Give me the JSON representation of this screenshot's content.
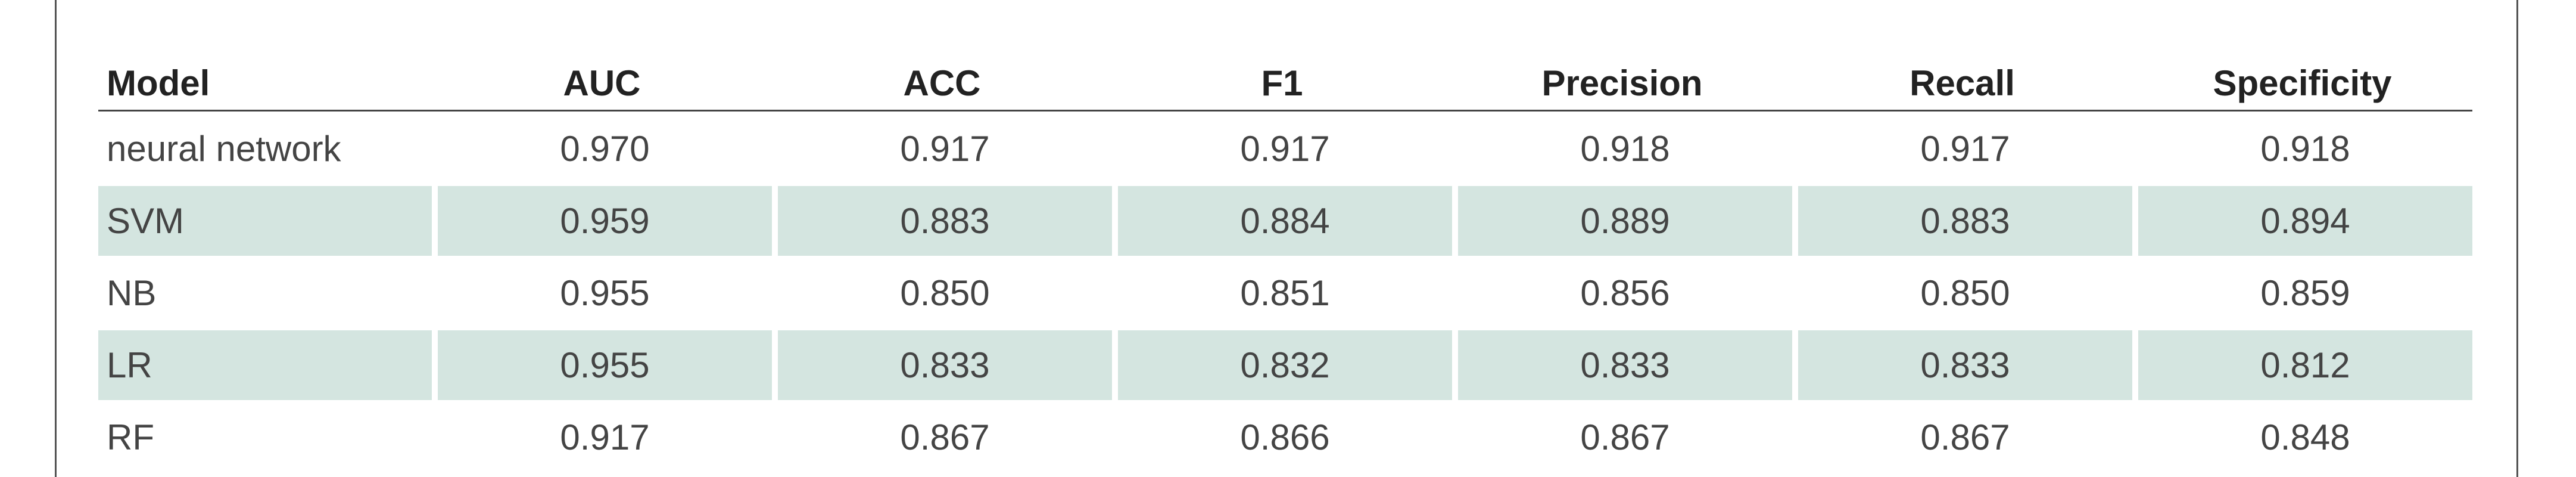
{
  "table": {
    "headers": [
      "Model",
      "AUC",
      "ACC",
      "F1",
      "Precision",
      "Recall",
      "Specificity"
    ],
    "rows": [
      [
        "neural network",
        "0.970",
        "0.917",
        "0.917",
        "0.918",
        "0.917",
        "0.918"
      ],
      [
        "SVM",
        "0.959",
        "0.883",
        "0.884",
        "0.889",
        "0.883",
        "0.894"
      ],
      [
        "NB",
        "0.955",
        "0.850",
        "0.851",
        "0.856",
        "0.850",
        "0.859"
      ],
      [
        "LR",
        "0.955",
        "0.833",
        "0.832",
        "0.833",
        "0.833",
        "0.812"
      ],
      [
        "RF",
        "0.917",
        "0.867",
        "0.866",
        "0.867",
        "0.867",
        "0.848"
      ]
    ],
    "shaded_row_color": "#d4e5e0"
  }
}
